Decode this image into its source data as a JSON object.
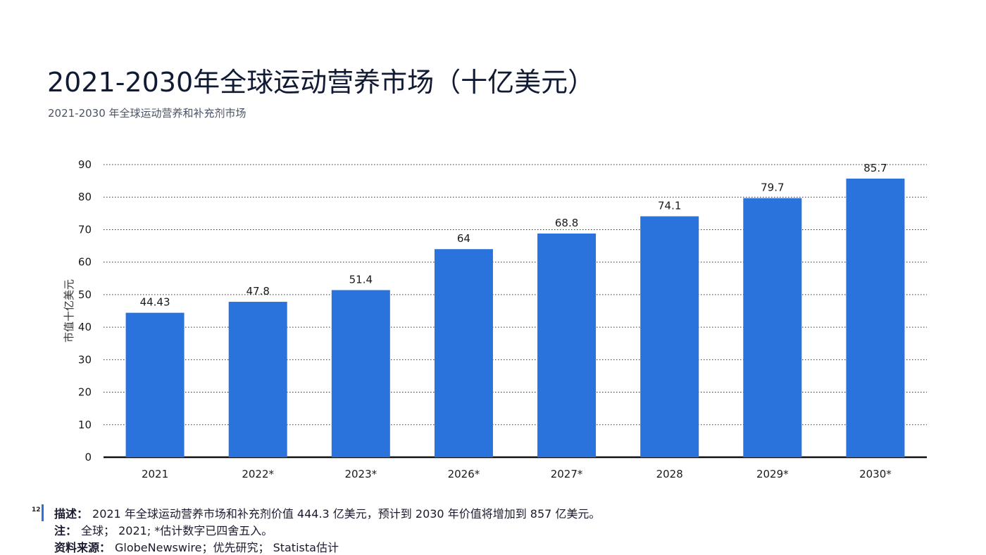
{
  "title": "2021-2030年全球运动营养市场（十亿美元）",
  "subtitle": "2021-2030 年全球运动营养和补充剂市场",
  "page_number": "12",
  "footer": {
    "description_label": "描述：",
    "description_text": "2021 年全球运动营养市场和补充剂价值 444.3 亿美元，预计到 2030 年价值将增加到 857 亿美元。",
    "note_label": "注：",
    "note_text": "全球； 2021; *估计数字已四舍五入。",
    "source_label": "资料来源：",
    "source_text": "GlobeNewswire；优先研究； Statista估计"
  },
  "colors": {
    "bar": "#2a73dc",
    "accent": "#2a73dc"
  },
  "chart_data": {
    "type": "bar",
    "title": "2021-2030年全球运动营养市场（十亿美元）",
    "subtitle": "2021-2030 年全球运动营养和补充剂市场",
    "xlabel": "",
    "ylabel": "市值十亿美元",
    "categories": [
      "2021",
      "2022*",
      "2023*",
      "2026*",
      "2027*",
      "2028",
      "2029*",
      "2030*"
    ],
    "values": [
      44.43,
      47.8,
      51.4,
      64,
      68.8,
      74.1,
      79.7,
      85.7
    ],
    "value_labels": [
      "44.43",
      "47.8",
      "51.4",
      "64",
      "68.8",
      "74.1",
      "79.7",
      "85.7"
    ],
    "ylim": [
      0,
      90
    ],
    "yticks": [
      0,
      10,
      20,
      30,
      40,
      50,
      60,
      70,
      80,
      90
    ],
    "grid": "dotted horizontal",
    "legend": "none"
  }
}
